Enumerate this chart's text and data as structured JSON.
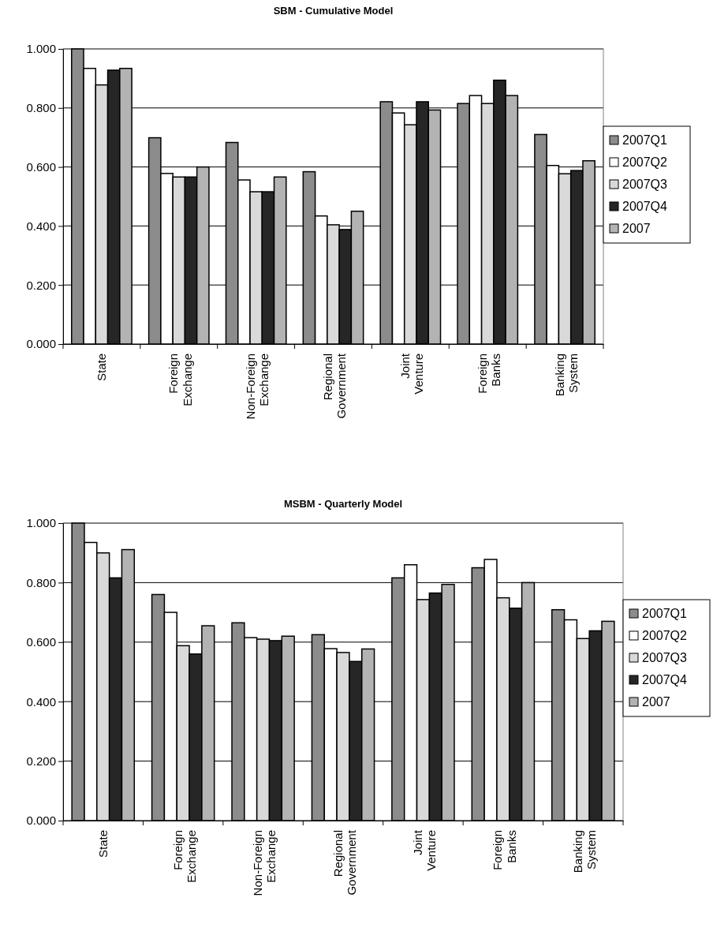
{
  "chart_data": [
    {
      "type": "bar",
      "title": "SBM - Cumulative Model",
      "categories": [
        "State",
        "Foreign Exchange",
        "Non-Foreign Exchange",
        "Regional Government",
        "Joint Venture",
        "Foreign Banks",
        "Banking System"
      ],
      "series": [
        {
          "name": "2007Q1",
          "color": "#8c8c8c",
          "values": [
            1.0,
            0.699,
            0.683,
            0.584,
            0.821,
            0.815,
            0.71
          ]
        },
        {
          "name": "2007Q2",
          "color": "#ffffff",
          "values": [
            0.934,
            0.578,
            0.556,
            0.434,
            0.783,
            0.842,
            0.605
          ]
        },
        {
          "name": "2007Q3",
          "color": "#d9d9d9",
          "values": [
            0.878,
            0.566,
            0.516,
            0.404,
            0.743,
            0.815,
            0.577
          ]
        },
        {
          "name": "2007Q4",
          "color": "#262626",
          "values": [
            0.928,
            0.566,
            0.516,
            0.388,
            0.821,
            0.894,
            0.588
          ]
        },
        {
          "name": "2007",
          "color": "#b3b3b3",
          "values": [
            0.934,
            0.6,
            0.566,
            0.45,
            0.793,
            0.842,
            0.621
          ]
        }
      ],
      "ylim": [
        0,
        1
      ],
      "yticks": [
        {
          "value": 0,
          "label": "0.000"
        },
        {
          "value": 0.2,
          "label": "0.200"
        },
        {
          "value": 0.4,
          "label": "0.400"
        },
        {
          "value": 0.6,
          "label": "0.600"
        },
        {
          "value": 0.8,
          "label": "0.800"
        },
        {
          "value": 1,
          "label": "1.000"
        }
      ],
      "grid": "y",
      "legend": "right"
    },
    {
      "type": "bar",
      "title": "MSBM - Quarterly Model",
      "categories": [
        "State",
        "Foreign Exchange",
        "Non-Foreign Exchange",
        "Regional Government",
        "Joint Venture",
        "Foreign Banks",
        "Banking System"
      ],
      "series": [
        {
          "name": "2007Q1",
          "color": "#8c8c8c",
          "values": [
            1.0,
            0.76,
            0.665,
            0.625,
            0.816,
            0.85,
            0.709
          ]
        },
        {
          "name": "2007Q2",
          "color": "#ffffff",
          "values": [
            0.935,
            0.7,
            0.615,
            0.578,
            0.86,
            0.878,
            0.675
          ]
        },
        {
          "name": "2007Q3",
          "color": "#d9d9d9",
          "values": [
            0.9,
            0.588,
            0.61,
            0.565,
            0.743,
            0.749,
            0.612
          ]
        },
        {
          "name": "2007Q4",
          "color": "#262626",
          "values": [
            0.816,
            0.56,
            0.605,
            0.535,
            0.765,
            0.714,
            0.638
          ]
        },
        {
          "name": "2007",
          "color": "#b3b3b3",
          "values": [
            0.911,
            0.655,
            0.62,
            0.577,
            0.794,
            0.8,
            0.67
          ]
        }
      ],
      "ylim": [
        0,
        1
      ],
      "yticks": [
        {
          "value": 0,
          "label": "0.000"
        },
        {
          "value": 0.2,
          "label": "0.200"
        },
        {
          "value": 0.4,
          "label": "0.400"
        },
        {
          "value": 0.6,
          "label": "0.600"
        },
        {
          "value": 0.8,
          "label": "0.800"
        },
        {
          "value": 1,
          "label": "1.000"
        }
      ],
      "grid": "y",
      "legend": "right"
    }
  ]
}
